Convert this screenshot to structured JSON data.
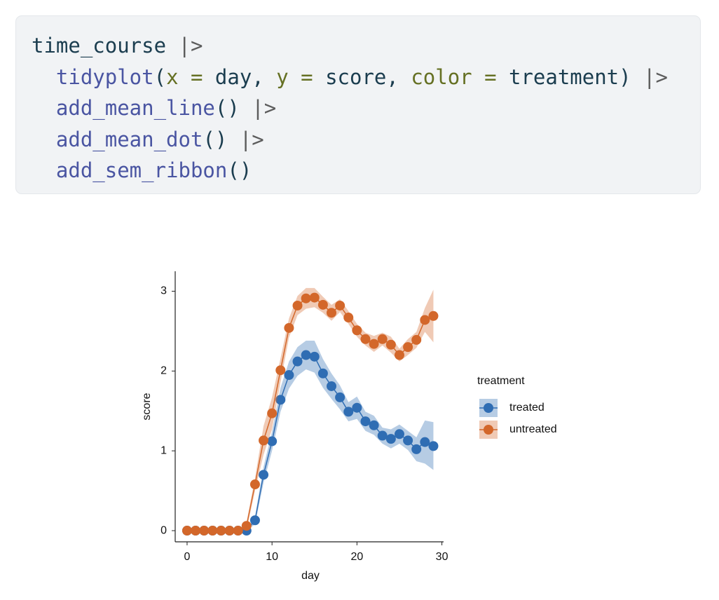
{
  "code": {
    "lines": [
      [
        {
          "text": "time_course",
          "color": "#1b3d4f"
        },
        {
          "text": " |>",
          "color": "#5c5c5c"
        }
      ],
      [
        {
          "text": "  tidyplot",
          "color": "#4a55a2"
        },
        {
          "text": "(",
          "color": "#1b3d4f"
        },
        {
          "text": "x =",
          "color": "#657023"
        },
        {
          "text": " day, ",
          "color": "#1b3d4f"
        },
        {
          "text": "y =",
          "color": "#657023"
        },
        {
          "text": " score, ",
          "color": "#1b3d4f"
        },
        {
          "text": "color =",
          "color": "#657023"
        },
        {
          "text": " treatment)",
          "color": "#1b3d4f"
        },
        {
          "text": " |>",
          "color": "#5c5c5c"
        }
      ],
      [
        {
          "text": "  add_mean_line",
          "color": "#4a55a2"
        },
        {
          "text": "()",
          "color": "#1b3d4f"
        },
        {
          "text": " |>",
          "color": "#5c5c5c"
        }
      ],
      [
        {
          "text": "  add_mean_dot",
          "color": "#4a55a2"
        },
        {
          "text": "()",
          "color": "#1b3d4f"
        },
        {
          "text": " |>",
          "color": "#5c5c5c"
        }
      ],
      [
        {
          "text": "  add_sem_ribbon",
          "color": "#4a55a2"
        },
        {
          "text": "()",
          "color": "#1b3d4f"
        }
      ]
    ]
  },
  "chart_data": {
    "type": "line",
    "x_label": "day",
    "y_label": "score",
    "legend_title": "treatment",
    "x": [
      0,
      1,
      2,
      3,
      4,
      5,
      6,
      7,
      8,
      9,
      10,
      11,
      12,
      13,
      14,
      15,
      16,
      17,
      18,
      19,
      20,
      21,
      22,
      23,
      24,
      25,
      26,
      27,
      28,
      29
    ],
    "series": [
      {
        "name": "treated",
        "color": "#2f6db3",
        "values": [
          0,
          0,
          0,
          0,
          0,
          0,
          0,
          0,
          0.13,
          0.7,
          1.12,
          1.64,
          1.95,
          2.12,
          2.2,
          2.18,
          1.97,
          1.81,
          1.67,
          1.49,
          1.54,
          1.37,
          1.32,
          1.19,
          1.15,
          1.21,
          1.13,
          1.02,
          1.11,
          1.06
        ],
        "sem": [
          0,
          0,
          0,
          0,
          0,
          0,
          0,
          0,
          0.05,
          0.1,
          0.12,
          0.15,
          0.17,
          0.18,
          0.18,
          0.2,
          0.18,
          0.16,
          0.15,
          0.12,
          0.14,
          0.12,
          0.12,
          0.1,
          0.12,
          0.12,
          0.12,
          0.15,
          0.27,
          0.3
        ]
      },
      {
        "name": "untreated",
        "color": "#d3672a",
        "values": [
          0,
          0,
          0,
          0,
          0,
          0,
          0,
          0.06,
          0.58,
          1.13,
          1.47,
          2.01,
          2.54,
          2.82,
          2.91,
          2.92,
          2.83,
          2.73,
          2.82,
          2.67,
          2.51,
          2.4,
          2.34,
          2.4,
          2.33,
          2.2,
          2.3,
          2.39,
          2.64,
          2.69
        ],
        "sem": [
          0,
          0,
          0,
          0,
          0,
          0,
          0,
          0.05,
          0.08,
          0.18,
          0.2,
          0.15,
          0.12,
          0.12,
          0.13,
          0.12,
          0.1,
          0.1,
          0.08,
          0.08,
          0.08,
          0.08,
          0.1,
          0.08,
          0.1,
          0.08,
          0.1,
          0.1,
          0.15,
          0.33
        ]
      }
    ],
    "xlim": [
      -1.4,
      30.2
    ],
    "xticks": [
      0,
      10,
      20,
      30
    ],
    "ylim": [
      -0.14,
      3.25
    ],
    "yticks": [
      0,
      1,
      2,
      3
    ],
    "ribbon_opacity": 0.35
  }
}
